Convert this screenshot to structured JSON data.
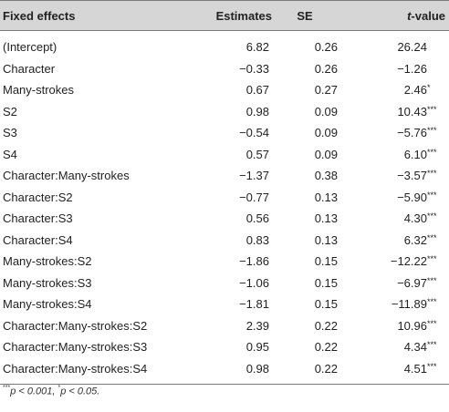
{
  "table": {
    "headers": {
      "fixed_effects": "Fixed effects",
      "estimates": "Estimates",
      "se": "SE",
      "tvalue_italic": "t",
      "tvalue_rest": "-value"
    },
    "rows": [
      {
        "effect": "(Intercept)",
        "estimate": "6.82",
        "se": "0.26",
        "t": "26.24",
        "sig": ""
      },
      {
        "effect": "Character",
        "estimate": "−0.33",
        "se": "0.26",
        "t": "−1.26",
        "sig": ""
      },
      {
        "effect": "Many-strokes",
        "estimate": "0.67",
        "se": "0.27",
        "t": "2.46",
        "sig": "*"
      },
      {
        "effect": "S2",
        "estimate": "0.98",
        "se": "0.09",
        "t": "10.43",
        "sig": "***"
      },
      {
        "effect": "S3",
        "estimate": "−0.54",
        "se": "0.09",
        "t": "−5.76",
        "sig": "***"
      },
      {
        "effect": "S4",
        "estimate": "0.57",
        "se": "0.09",
        "t": "6.10",
        "sig": "***"
      },
      {
        "effect": "Character:Many-strokes",
        "estimate": "−1.37",
        "se": "0.38",
        "t": "−3.57",
        "sig": "***"
      },
      {
        "effect": "Character:S2",
        "estimate": "−0.77",
        "se": "0.13",
        "t": "−5.90",
        "sig": "***"
      },
      {
        "effect": "Character:S3",
        "estimate": "0.56",
        "se": "0.13",
        "t": "4.30",
        "sig": "***"
      },
      {
        "effect": "Character:S4",
        "estimate": "0.83",
        "se": "0.13",
        "t": "6.32",
        "sig": "***"
      },
      {
        "effect": "Many-strokes:S2",
        "estimate": "−1.86",
        "se": "0.15",
        "t": "−12.22",
        "sig": "***"
      },
      {
        "effect": "Many-strokes:S3",
        "estimate": "−1.06",
        "se": "0.15",
        "t": "−6.97",
        "sig": "***"
      },
      {
        "effect": "Many-strokes:S4",
        "estimate": "−1.81",
        "se": "0.15",
        "t": "−11.89",
        "sig": "***"
      },
      {
        "effect": "Character:Many-strokes:S2",
        "estimate": "2.39",
        "se": "0.22",
        "t": "10.96",
        "sig": "***"
      },
      {
        "effect": "Character:Many-strokes:S3",
        "estimate": "0.95",
        "se": "0.22",
        "t": "4.34",
        "sig": "***"
      },
      {
        "effect": "Character:Many-strokes:S4",
        "estimate": "0.98",
        "se": "0.22",
        "t": "4.51",
        "sig": "***"
      }
    ]
  },
  "footnote": {
    "sig1_marker": "***",
    "sig1_text": "p < 0.001, ",
    "sig2_marker": "*",
    "sig2_text": "p < 0.05."
  }
}
